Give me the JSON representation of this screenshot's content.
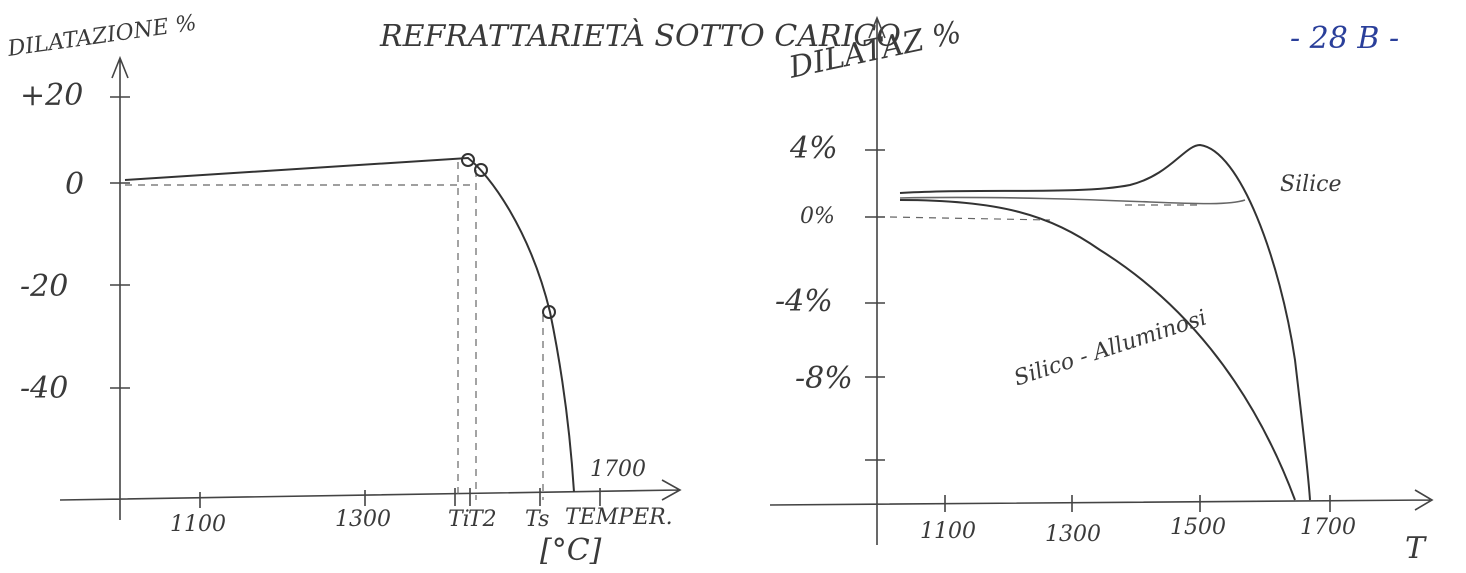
{
  "page": {
    "title": "REFRATTARIETÀ SOTTO CARICO",
    "page_number": "- 28 B -",
    "left_chart": {
      "y_label": "DILATAZIONE %",
      "y_ticks": [
        "+20",
        "0",
        "-20",
        "-40"
      ],
      "x_ticks": [
        "1100",
        "1300",
        "Ti",
        "T2",
        "Ts",
        "1700"
      ],
      "x_label": "TEMPER.",
      "x_unit": "[°C]"
    },
    "right_chart": {
      "y_label": "DILATAZ %",
      "y_ticks": [
        "4%",
        "0%",
        "-4%",
        "-8%"
      ],
      "x_ticks": [
        "1100",
        "1300",
        "1500",
        "1700"
      ],
      "x_label": "T",
      "curve_labels": [
        "Silice",
        "Silico - Alluminosi"
      ]
    }
  }
}
